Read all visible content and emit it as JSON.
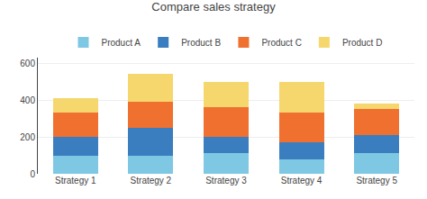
{
  "chart_data": {
    "type": "bar",
    "title": "Compare sales strategy",
    "categories": [
      "Strategy 1",
      "Strategy 2",
      "Strategy 3",
      "Strategy 4",
      "Strategy 5"
    ],
    "series": [
      {
        "name": "Product A",
        "color": "#7ec8e3",
        "values": [
          100,
          100,
          110,
          80,
          110
        ]
      },
      {
        "name": "Product B",
        "color": "#3a7ebf",
        "values": [
          100,
          150,
          90,
          90,
          100
        ]
      },
      {
        "name": "Product C",
        "color": "#f07030",
        "values": [
          130,
          140,
          160,
          160,
          140
        ]
      },
      {
        "name": "Product D",
        "color": "#f5d76e",
        "values": [
          80,
          150,
          140,
          170,
          30
        ]
      }
    ],
    "stacked": true,
    "ylim": [
      0,
      630
    ],
    "yticks": [
      0,
      200,
      400,
      600
    ],
    "grid": true,
    "legend": "top"
  }
}
